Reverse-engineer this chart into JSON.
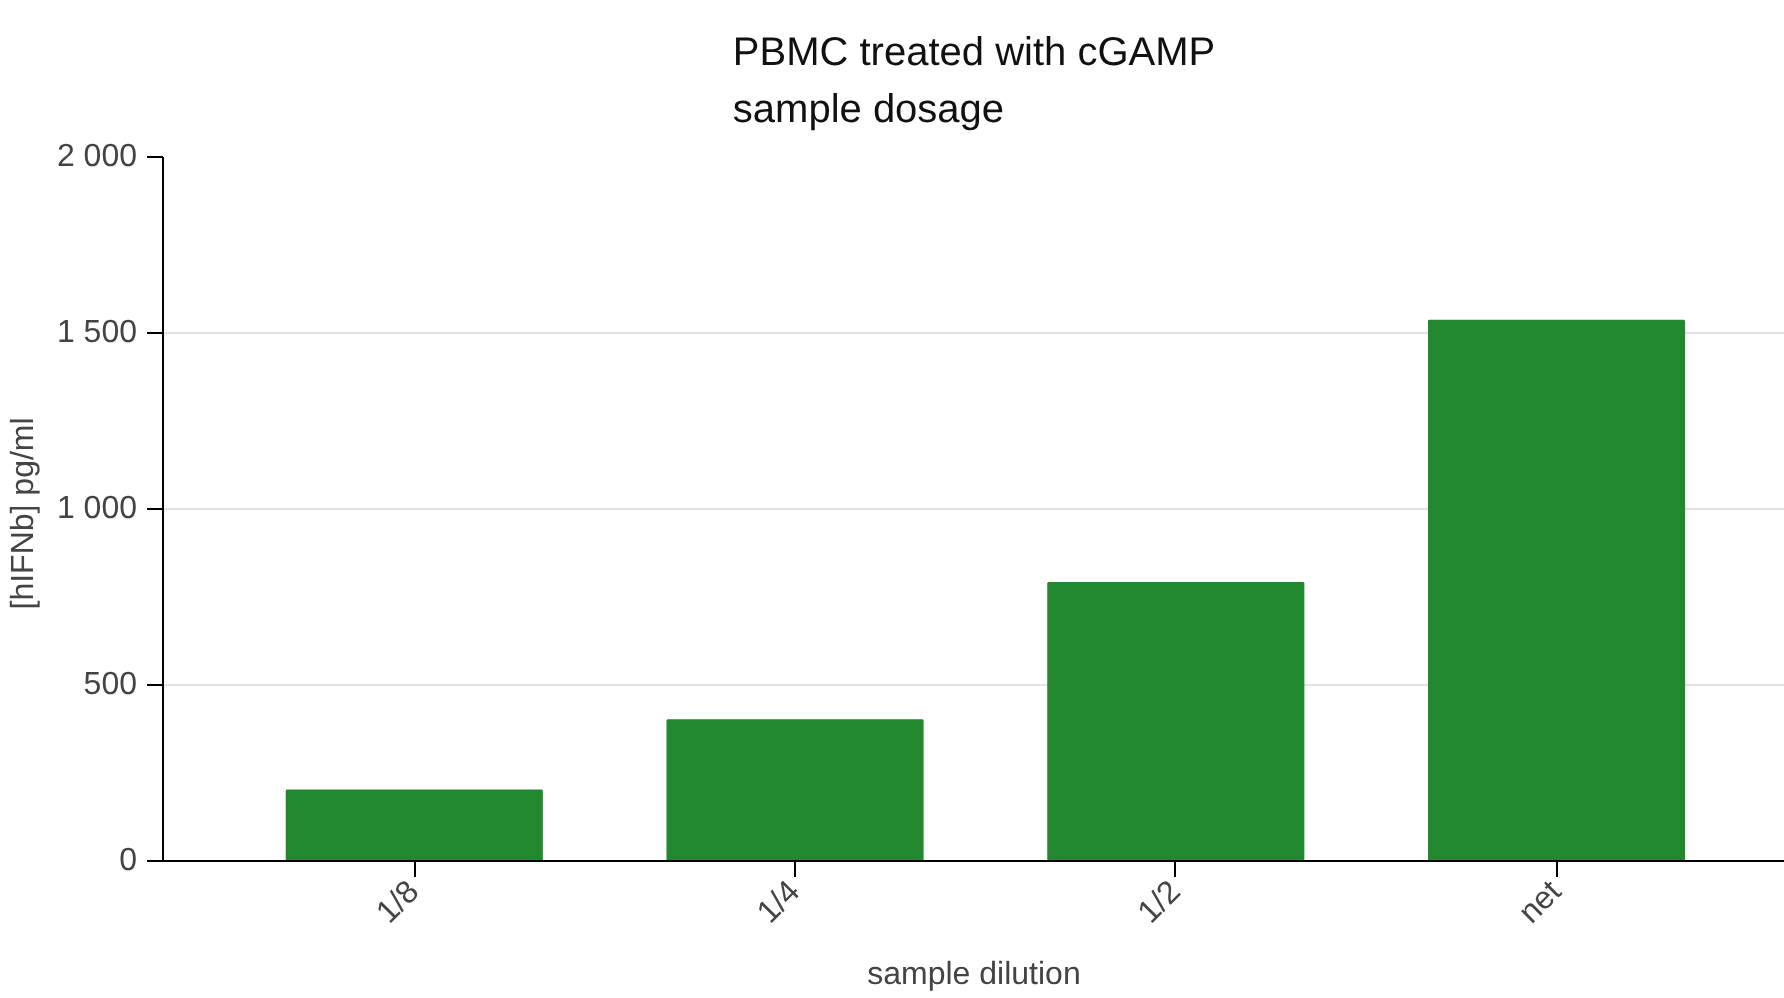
{
  "chart_data": {
    "type": "bar",
    "title": "PBMC treated with cGAMP\nsample dosage",
    "xlabel": "sample dilution",
    "ylabel": "[hIFNb]  pg/ml",
    "categories": [
      "1/8",
      "1/4",
      "1/2",
      "net"
    ],
    "values": [
      200,
      400,
      790,
      1535
    ],
    "color": "#22882e",
    "ylim": [
      0,
      2000
    ],
    "yticks": [
      0,
      500,
      {
        "value": 1000,
        "label": "1 000"
      },
      {
        "value": 1500,
        "label": "1 500"
      },
      {
        "value": 2000,
        "label": "2 000"
      }
    ],
    "grid": "y"
  }
}
